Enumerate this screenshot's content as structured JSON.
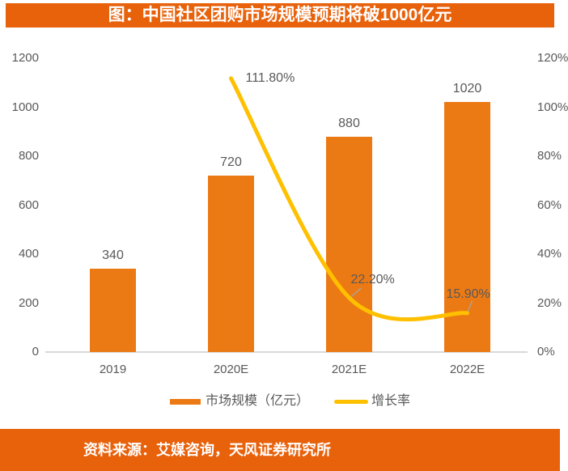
{
  "title": "图：中国社区团购市场规模预期将破1000亿元",
  "footer": {
    "source": "资料来源：艾媒咨询，天风证券研究所"
  },
  "colors": {
    "banner_orange": "#E8610B",
    "bar_orange": "#EC7A14",
    "line_yellow": "#FFC000",
    "label_gray": "#595959",
    "axis_gray": "#D9D9D9",
    "leader_gray": "#A6A6A6",
    "title_text": "#FFFFFF"
  },
  "chart_data": {
    "type": "bar",
    "subtype": "combo-bar-line",
    "categories": [
      "2019",
      "2020E",
      "2021E",
      "2022E"
    ],
    "series": [
      {
        "name": "市场规模（亿元）",
        "type": "bar",
        "axis": "left",
        "values": [
          340,
          720,
          880,
          1020
        ],
        "labels": [
          "340",
          "720",
          "880",
          "1020"
        ],
        "color": "#EC7A14"
      },
      {
        "name": "增长率",
        "type": "line",
        "axis": "right",
        "values": [
          null,
          111.8,
          22.2,
          15.9
        ],
        "labels": [
          null,
          "111.80%",
          "22.20%",
          "15.90%"
        ],
        "color": "#FFC000"
      }
    ],
    "left_axis": {
      "min": 0,
      "max": 1200,
      "step": 200,
      "ticks": [
        "0",
        "200",
        "400",
        "600",
        "800",
        "1000",
        "1200"
      ]
    },
    "right_axis": {
      "min": 0,
      "max": 120,
      "step": 20,
      "ticks": [
        "0%",
        "20%",
        "40%",
        "60%",
        "80%",
        "100%",
        "120%"
      ]
    },
    "grid": false,
    "legend_position": "bottom",
    "legend": [
      "市场规模（亿元）",
      "增长率"
    ]
  }
}
